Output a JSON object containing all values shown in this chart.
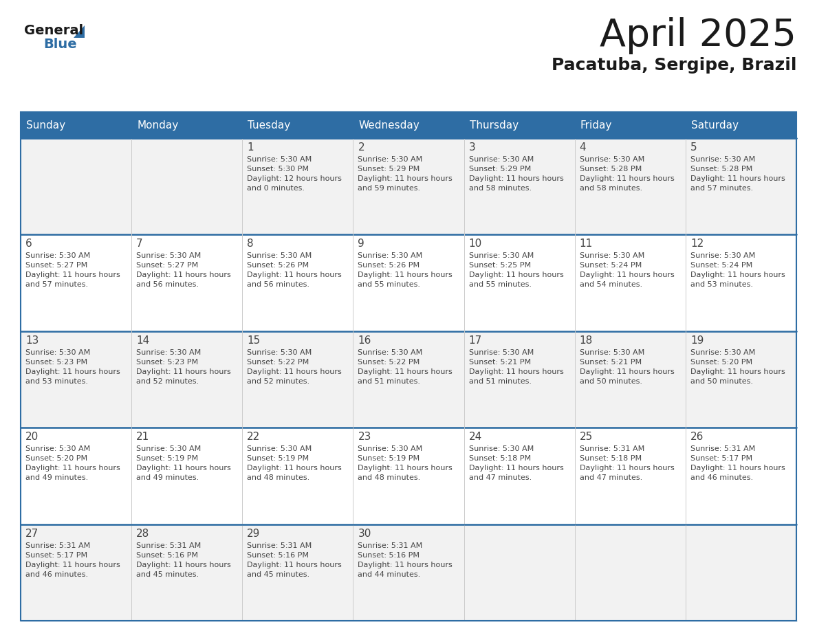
{
  "title": "April 2025",
  "subtitle": "Pacatuba, Sergipe, Brazil",
  "days_of_week": [
    "Sunday",
    "Monday",
    "Tuesday",
    "Wednesday",
    "Thursday",
    "Friday",
    "Saturday"
  ],
  "header_bg": "#2E6DA4",
  "header_text": "#FFFFFF",
  "cell_bg_odd": "#F2F2F2",
  "cell_bg_even": "#FFFFFF",
  "border_color": "#2E6DA4",
  "text_color": "#444444",
  "title_color": "#1a1a1a",
  "subtitle_color": "#1a1a1a",
  "general_color": "#1a1a1a",
  "blue_color": "#2E6DA4",
  "calendar": [
    [
      {
        "day": "",
        "sunrise": "",
        "sunset": "",
        "daylight": ""
      },
      {
        "day": "",
        "sunrise": "",
        "sunset": "",
        "daylight": ""
      },
      {
        "day": "1",
        "sunrise": "5:30 AM",
        "sunset": "5:30 PM",
        "daylight": "12 hours and 0 minutes."
      },
      {
        "day": "2",
        "sunrise": "5:30 AM",
        "sunset": "5:29 PM",
        "daylight": "11 hours and 59 minutes."
      },
      {
        "day": "3",
        "sunrise": "5:30 AM",
        "sunset": "5:29 PM",
        "daylight": "11 hours and 58 minutes."
      },
      {
        "day": "4",
        "sunrise": "5:30 AM",
        "sunset": "5:28 PM",
        "daylight": "11 hours and 58 minutes."
      },
      {
        "day": "5",
        "sunrise": "5:30 AM",
        "sunset": "5:28 PM",
        "daylight": "11 hours and 57 minutes."
      }
    ],
    [
      {
        "day": "6",
        "sunrise": "5:30 AM",
        "sunset": "5:27 PM",
        "daylight": "11 hours and 57 minutes."
      },
      {
        "day": "7",
        "sunrise": "5:30 AM",
        "sunset": "5:27 PM",
        "daylight": "11 hours and 56 minutes."
      },
      {
        "day": "8",
        "sunrise": "5:30 AM",
        "sunset": "5:26 PM",
        "daylight": "11 hours and 56 minutes."
      },
      {
        "day": "9",
        "sunrise": "5:30 AM",
        "sunset": "5:26 PM",
        "daylight": "11 hours and 55 minutes."
      },
      {
        "day": "10",
        "sunrise": "5:30 AM",
        "sunset": "5:25 PM",
        "daylight": "11 hours and 55 minutes."
      },
      {
        "day": "11",
        "sunrise": "5:30 AM",
        "sunset": "5:24 PM",
        "daylight": "11 hours and 54 minutes."
      },
      {
        "day": "12",
        "sunrise": "5:30 AM",
        "sunset": "5:24 PM",
        "daylight": "11 hours and 53 minutes."
      }
    ],
    [
      {
        "day": "13",
        "sunrise": "5:30 AM",
        "sunset": "5:23 PM",
        "daylight": "11 hours and 53 minutes."
      },
      {
        "day": "14",
        "sunrise": "5:30 AM",
        "sunset": "5:23 PM",
        "daylight": "11 hours and 52 minutes."
      },
      {
        "day": "15",
        "sunrise": "5:30 AM",
        "sunset": "5:22 PM",
        "daylight": "11 hours and 52 minutes."
      },
      {
        "day": "16",
        "sunrise": "5:30 AM",
        "sunset": "5:22 PM",
        "daylight": "11 hours and 51 minutes."
      },
      {
        "day": "17",
        "sunrise": "5:30 AM",
        "sunset": "5:21 PM",
        "daylight": "11 hours and 51 minutes."
      },
      {
        "day": "18",
        "sunrise": "5:30 AM",
        "sunset": "5:21 PM",
        "daylight": "11 hours and 50 minutes."
      },
      {
        "day": "19",
        "sunrise": "5:30 AM",
        "sunset": "5:20 PM",
        "daylight": "11 hours and 50 minutes."
      }
    ],
    [
      {
        "day": "20",
        "sunrise": "5:30 AM",
        "sunset": "5:20 PM",
        "daylight": "11 hours and 49 minutes."
      },
      {
        "day": "21",
        "sunrise": "5:30 AM",
        "sunset": "5:19 PM",
        "daylight": "11 hours and 49 minutes."
      },
      {
        "day": "22",
        "sunrise": "5:30 AM",
        "sunset": "5:19 PM",
        "daylight": "11 hours and 48 minutes."
      },
      {
        "day": "23",
        "sunrise": "5:30 AM",
        "sunset": "5:19 PM",
        "daylight": "11 hours and 48 minutes."
      },
      {
        "day": "24",
        "sunrise": "5:30 AM",
        "sunset": "5:18 PM",
        "daylight": "11 hours and 47 minutes."
      },
      {
        "day": "25",
        "sunrise": "5:31 AM",
        "sunset": "5:18 PM",
        "daylight": "11 hours and 47 minutes."
      },
      {
        "day": "26",
        "sunrise": "5:31 AM",
        "sunset": "5:17 PM",
        "daylight": "11 hours and 46 minutes."
      }
    ],
    [
      {
        "day": "27",
        "sunrise": "5:31 AM",
        "sunset": "5:17 PM",
        "daylight": "11 hours and 46 minutes."
      },
      {
        "day": "28",
        "sunrise": "5:31 AM",
        "sunset": "5:16 PM",
        "daylight": "11 hours and 45 minutes."
      },
      {
        "day": "29",
        "sunrise": "5:31 AM",
        "sunset": "5:16 PM",
        "daylight": "11 hours and 45 minutes."
      },
      {
        "day": "30",
        "sunrise": "5:31 AM",
        "sunset": "5:16 PM",
        "daylight": "11 hours and 44 minutes."
      },
      {
        "day": "",
        "sunrise": "",
        "sunset": "",
        "daylight": ""
      },
      {
        "day": "",
        "sunrise": "",
        "sunset": "",
        "daylight": ""
      },
      {
        "day": "",
        "sunrise": "",
        "sunset": "",
        "daylight": ""
      }
    ]
  ]
}
